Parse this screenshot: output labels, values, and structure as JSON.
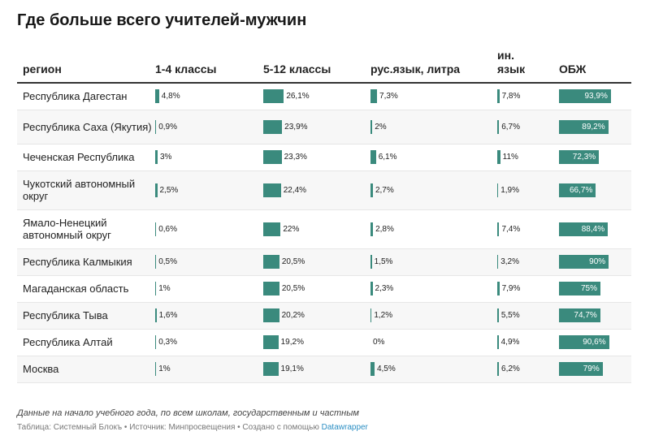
{
  "title": "Где больше всего учителей-мужчин",
  "note": "Данные на начало учебного года, по всем школам, государственным и частным",
  "footer": {
    "text": "Таблица: Системный Блокъ • Источник: Минпросвещения • Создано с помощью ",
    "link": "Datawrapper"
  },
  "chart_data": {
    "type": "table",
    "columns": [
      {
        "key": "region",
        "label": "регион"
      },
      {
        "key": "g1_4",
        "label": "1-4 классы"
      },
      {
        "key": "g5_12",
        "label": "5-12 классы"
      },
      {
        "key": "rus",
        "label": "рус.язык, литра"
      },
      {
        "key": "foreign",
        "label": "ин.\nязык"
      },
      {
        "key": "obzh",
        "label": "ОБЖ"
      }
    ],
    "rows": [
      {
        "region": "Республика Дагестан",
        "g1_4": 4.8,
        "g5_12": 26.1,
        "rus": 7.3,
        "foreign": 7.8,
        "obzh": 93.9,
        "labels": {
          "g1_4": "4,8%",
          "g5_12": "26,1%",
          "rus": "7,3%",
          "foreign": "7,8%",
          "obzh": "93,9%"
        }
      },
      {
        "region": "Республика Саха (Якутия)",
        "g1_4": 0.9,
        "g5_12": 23.9,
        "rus": 2,
        "foreign": 6.7,
        "obzh": 89.2,
        "labels": {
          "g1_4": "0,9%",
          "g5_12": "23,9%",
          "rus": "2%",
          "foreign": "6,7%",
          "obzh": "89,2%"
        }
      },
      {
        "region": "Чеченская Республика",
        "g1_4": 3,
        "g5_12": 23.3,
        "rus": 6.1,
        "foreign": 11,
        "obzh": 72.3,
        "labels": {
          "g1_4": "3%",
          "g5_12": "23,3%",
          "rus": "6,1%",
          "foreign": "11%",
          "obzh": "72,3%"
        }
      },
      {
        "region": "Чукотский автономный округ",
        "g1_4": 2.5,
        "g5_12": 22.4,
        "rus": 2.7,
        "foreign": 1.9,
        "obzh": 66.7,
        "labels": {
          "g1_4": "2,5%",
          "g5_12": "22,4%",
          "rus": "2,7%",
          "foreign": "1,9%",
          "obzh": "66,7%"
        }
      },
      {
        "region": "Ямало-Ненецкий автономный округ",
        "g1_4": 0.6,
        "g5_12": 22,
        "rus": 2.8,
        "foreign": 7.4,
        "obzh": 88.4,
        "labels": {
          "g1_4": "0,6%",
          "g5_12": "22%",
          "rus": "2,8%",
          "foreign": "7,4%",
          "obzh": "88,4%"
        }
      },
      {
        "region": "Республика Калмыкия",
        "g1_4": 0.5,
        "g5_12": 20.5,
        "rus": 1.5,
        "foreign": 3.2,
        "obzh": 90,
        "labels": {
          "g1_4": "0,5%",
          "g5_12": "20,5%",
          "rus": "1,5%",
          "foreign": "3,2%",
          "obzh": "90%"
        }
      },
      {
        "region": "Магаданская область",
        "g1_4": 1,
        "g5_12": 20.5,
        "rus": 2.3,
        "foreign": 7.9,
        "obzh": 75,
        "labels": {
          "g1_4": "1%",
          "g5_12": "20,5%",
          "rus": "2,3%",
          "foreign": "7,9%",
          "obzh": "75%"
        }
      },
      {
        "region": "Республика Тыва",
        "g1_4": 1.6,
        "g5_12": 20.2,
        "rus": 1.2,
        "foreign": 5.5,
        "obzh": 74.7,
        "labels": {
          "g1_4": "1,6%",
          "g5_12": "20,2%",
          "rus": "1,2%",
          "foreign": "5,5%",
          "obzh": "74,7%"
        }
      },
      {
        "region": "Республика Алтай",
        "g1_4": 0.3,
        "g5_12": 19.2,
        "rus": 0,
        "foreign": 4.9,
        "obzh": 90.6,
        "labels": {
          "g1_4": "0,3%",
          "g5_12": "19,2%",
          "rus": "0%",
          "foreign": "4,9%",
          "obzh": "90,6%"
        }
      },
      {
        "region": "Москва",
        "g1_4": 1,
        "g5_12": 19.1,
        "rus": 4.5,
        "foreign": 6.2,
        "obzh": 79,
        "labels": {
          "g1_4": "1%",
          "g5_12": "19,1%",
          "rus": "4,5%",
          "foreign": "6,2%",
          "obzh": "79%"
        }
      }
    ],
    "bar_color": "#3a8a7d"
  }
}
